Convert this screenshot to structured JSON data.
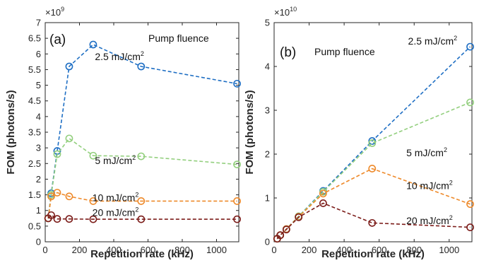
{
  "chart_data": [
    {
      "type": "line",
      "panel_label": "(a)",
      "xlabel": "Repetition rate (kHz)",
      "ylabel": "FOM (photons/s)",
      "y_multiplier": {
        "base": "×10",
        "power": "9"
      },
      "legend_title": "Pump fluence",
      "xlim": [
        0,
        1130
      ],
      "ylim": [
        0,
        7
      ],
      "x_ticks": [
        0,
        200,
        400,
        600,
        800,
        1000
      ],
      "y_ticks": [
        0,
        0.5,
        1,
        1.5,
        2,
        2.5,
        3,
        3.5,
        4,
        4.5,
        5,
        5.5,
        6,
        6.5,
        7
      ],
      "y_tick_labels": [
        "0",
        "0.5",
        "1",
        "1.5",
        "2",
        "2.5",
        "3",
        "3.5",
        "4",
        "4.5",
        "5",
        "5.5",
        "6",
        "6.5",
        "7"
      ],
      "grid": false,
      "x": [
        17.5,
        35,
        70,
        140,
        280,
        560,
        1120
      ],
      "series": [
        {
          "name": "2.5 mJ/cm2",
          "label_base": "2.5 mJ/cm",
          "label_sup": "2",
          "color": "#1f6fc4",
          "y": [
            0.75,
            1.55,
            2.9,
            5.6,
            6.3,
            5.6,
            5.05
          ],
          "label_x": 290,
          "label_y": 5.8
        },
        {
          "name": "5 mJ/cm2",
          "label_base": "5 mJ/cm",
          "label_sup": "2",
          "color": "#93cf7e",
          "y": [
            0.75,
            1.5,
            2.8,
            3.3,
            2.75,
            2.73,
            2.47
          ],
          "label_x": 290,
          "label_y": 2.48
        },
        {
          "name": "10 mJ/cm2",
          "label_base": "10 mJ/cm",
          "label_sup": "2",
          "color": "#ee8a2b",
          "y": [
            0.75,
            1.45,
            1.57,
            1.45,
            1.3,
            1.3,
            1.3
          ],
          "label_x": 275,
          "label_y": 1.3
        },
        {
          "name": "20 mJ/cm2",
          "label_base": "20 mJ/cm",
          "label_sup": "2",
          "color": "#7c1d1a",
          "y": [
            0.75,
            0.85,
            0.73,
            0.73,
            0.72,
            0.72,
            0.72
          ],
          "label_x": 275,
          "label_y": 0.82
        }
      ]
    },
    {
      "type": "line",
      "panel_label": "(b)",
      "xlabel": "Repetition rate (kHz)",
      "ylabel": "FOM (photons/s)",
      "y_multiplier": {
        "base": "×10",
        "power": "10"
      },
      "legend_title": "Pump fluence",
      "xlim": [
        0,
        1130
      ],
      "ylim": [
        0,
        5
      ],
      "x_ticks": [
        0,
        200,
        400,
        600,
        800,
        1000
      ],
      "y_ticks": [
        0,
        1,
        2,
        3,
        4,
        5
      ],
      "y_tick_labels": [
        "0",
        "1",
        "2",
        "3",
        "4",
        "5"
      ],
      "grid": false,
      "x": [
        17.5,
        35,
        70,
        140,
        280,
        560,
        1120
      ],
      "series": [
        {
          "name": "2.5 mJ/cm2",
          "label_base": "2.5 mJ/cm",
          "label_sup": "2",
          "color": "#1f6fc4",
          "y": [
            0.07,
            0.15,
            0.29,
            0.58,
            1.16,
            2.3,
            4.45
          ],
          "label_x": 765,
          "label_y": 4.5
        },
        {
          "name": "5 mJ/cm2",
          "label_base": "5 mJ/cm",
          "label_sup": "2",
          "color": "#93cf7e",
          "y": [
            0.07,
            0.15,
            0.29,
            0.58,
            1.14,
            2.25,
            3.18
          ],
          "label_x": 755,
          "label_y": 1.95
        },
        {
          "name": "10 mJ/cm2",
          "label_base": "10 mJ/cm",
          "label_sup": "2",
          "color": "#ee8a2b",
          "y": [
            0.07,
            0.15,
            0.29,
            0.57,
            1.1,
            1.67,
            0.86
          ],
          "label_x": 755,
          "label_y": 1.2
        },
        {
          "name": "20 mJ/cm2",
          "label_base": "20 mJ/cm",
          "label_sup": "2",
          "color": "#7c1d1a",
          "y": [
            0.07,
            0.15,
            0.28,
            0.56,
            0.88,
            0.43,
            0.33
          ],
          "label_x": 755,
          "label_y": 0.4
        }
      ]
    }
  ]
}
